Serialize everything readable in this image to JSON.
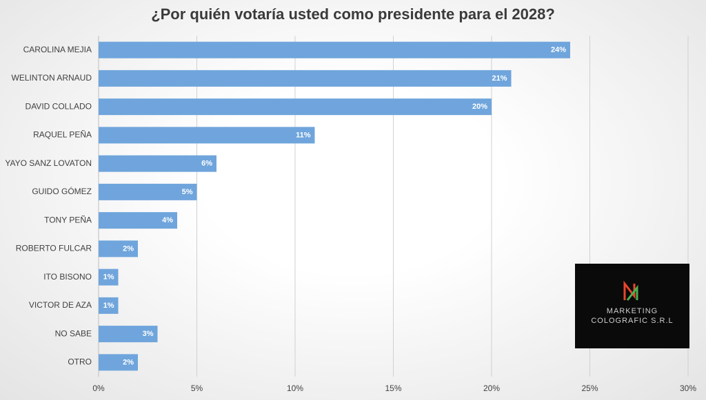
{
  "chart_data": {
    "type": "barh",
    "title": "¿Por quién votaría usted como presidente para el 2028?",
    "categories": [
      "CAROLINA MEJIA",
      "WELINTON ARNAUD",
      "DAVID COLLADO",
      "RAQUEL PEÑA",
      "YAYO SANZ LOVATON",
      "GUIDO GÓMEZ",
      "TONY PEÑA",
      "ROBERTO FULCAR",
      "ITO BISONO",
      "VICTOR DE AZA",
      "NO SABE",
      "OTRO"
    ],
    "values": [
      24,
      21,
      20,
      11,
      6,
      5,
      4,
      2,
      1,
      1,
      3,
      2
    ],
    "value_labels": [
      "24%",
      "21%",
      "20%",
      "11%",
      "6%",
      "5%",
      "4%",
      "2%",
      "1%",
      "1%",
      "3%",
      "2%"
    ],
    "color": "#6fa5dc",
    "xlim": [
      0,
      30
    ],
    "xticks": [
      {
        "value": 0,
        "label": "0%"
      },
      {
        "value": 5,
        "label": "5%"
      },
      {
        "value": 10,
        "label": "10%"
      },
      {
        "value": 15,
        "label": "15%"
      },
      {
        "value": 20,
        "label": "20%"
      },
      {
        "value": 25,
        "label": "25%"
      },
      {
        "value": 30,
        "label": "30%"
      }
    ],
    "grid": true,
    "annotations": [
      "MARKETING",
      "COLOGRAFIC S.R.L"
    ]
  }
}
